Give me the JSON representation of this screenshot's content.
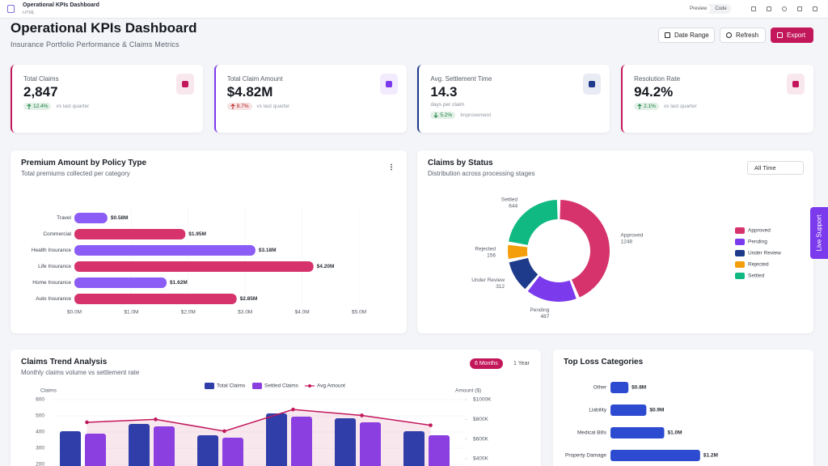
{
  "app": {
    "title": "Operational KPIs Dashboard",
    "subtitle": "HTML",
    "tabs": [
      "Preview",
      "Code"
    ]
  },
  "header": {
    "title": "Operational KPIs Dashboard",
    "subtitle": "Insurance Portfolio Performance & Claims Metrics",
    "buttons": [
      "Date Range",
      "Refresh",
      "Export"
    ]
  },
  "kpis": [
    {
      "label": "Total Claims",
      "value": "2,847",
      "change": "12.4%",
      "note": "vs last quarter",
      "direction": "up",
      "color": "#c2185b",
      "badge_color": "#15803d"
    },
    {
      "label": "Total Claim Amount",
      "value": "$4.82M",
      "change": "8.7%",
      "note": "vs last quarter",
      "direction": "up",
      "color": "#7c3aed",
      "badge_color": "#b91c1c"
    },
    {
      "label": "Avg. Settlement Time",
      "value": "14.3",
      "unit": "days per claim",
      "change": "5.2%",
      "note": "Improvement",
      "direction": "down",
      "color": "#1e3a8a",
      "badge_color": "#15803d"
    },
    {
      "label": "Resolution Rate",
      "value": "94.2%",
      "change": "2.1%",
      "note": "vs last quarter",
      "direction": "up",
      "color": "#c2185b",
      "badge_color": "#15803d"
    }
  ],
  "live_support": "Live Support",
  "chart_data": [
    {
      "type": "bar",
      "orientation": "horizontal",
      "title": "Premium Amount by Policy Type",
      "subtitle": "Total premiums collected per category",
      "categories": [
        "Travel",
        "Commercial",
        "Health Insurance",
        "Life Insurance",
        "Home Insurance",
        "Auto Insurance"
      ],
      "values": [
        0.58,
        1.95,
        3.18,
        4.2,
        1.62,
        2.85
      ],
      "value_labels": [
        "$0.58M",
        "$1.95M",
        "$3.18M",
        "$4.20M",
        "$1.62M",
        "$2.85M"
      ],
      "colors": [
        "#8b5cf6",
        "#d6336c",
        "#8b5cf6",
        "#d6336c",
        "#8b5cf6",
        "#d6336c"
      ],
      "xlim": [
        0,
        5
      ],
      "xticks": [
        {
          "value": 0,
          "label": "$0.0M"
        },
        {
          "value": 1,
          "label": "$1.0M"
        },
        {
          "value": 2,
          "label": "$2.0M"
        },
        {
          "value": 3,
          "label": "$3.0M"
        },
        {
          "value": 4,
          "label": "$4.0M"
        },
        {
          "value": 5,
          "label": "$5.0M"
        }
      ]
    },
    {
      "type": "donut",
      "title": "Claims by Status",
      "subtitle": "Distribution across processing stages",
      "filter": "All Time",
      "categories": [
        "Approved",
        "Pending",
        "Under Review",
        "Rejected",
        "Settled"
      ],
      "values": [
        1248,
        487,
        312,
        156,
        644
      ],
      "colors": [
        "#d6336c",
        "#7c3aed",
        "#1e3a8a",
        "#f59e0b",
        "#10b981"
      ],
      "legend": "right"
    },
    {
      "type": "combo",
      "title": "Claims Trend Analysis",
      "subtitle": "Monthly claims volume vs settlement rate",
      "periods": [
        "6 Months",
        "1 Year"
      ],
      "active_period": 0,
      "categories": [
        null,
        null,
        null,
        null,
        null,
        null
      ],
      "series": [
        {
          "name": "Total Claims",
          "type": "bar",
          "color": "#2f3ea8",
          "values": [
            405,
            450,
            380,
            515,
            485,
            405
          ]
        },
        {
          "name": "Settled Claims",
          "type": "bar",
          "color": "#8b3fe0",
          "values": [
            390,
            435,
            365,
            495,
            460,
            380
          ]
        },
        {
          "name": "Avg Amount",
          "type": "line",
          "axis": "y2",
          "color": "#c2185b",
          "values": [
            770,
            800,
            680,
            900,
            840,
            740
          ]
        }
      ],
      "ylabel": "Claims",
      "y2label": "Amount ($)",
      "ylim": [
        200,
        600
      ],
      "yticks": [
        200,
        300,
        400,
        500,
        600
      ],
      "y2lim": [
        400,
        1000
      ],
      "y2ticks": [
        {
          "value": 400,
          "label": "$400K"
        },
        {
          "value": 600,
          "label": "$600K"
        },
        {
          "value": 800,
          "label": "$800K"
        },
        {
          "value": 1000,
          "label": "$1000K"
        }
      ],
      "grid": true
    },
    {
      "type": "bar",
      "orientation": "horizontal",
      "title": "Top Loss Categories",
      "categories": [
        "Other",
        "Liability",
        "Medical Bills",
        "Property Damage"
      ],
      "values": [
        0.8,
        0.9,
        1.0,
        1.2
      ],
      "value_labels": [
        "$0.8M",
        "$0.9M",
        "$1.0M",
        "$1.2M"
      ],
      "color": "#2c4bd0",
      "xlim": [
        0.7,
        1.3
      ]
    }
  ]
}
